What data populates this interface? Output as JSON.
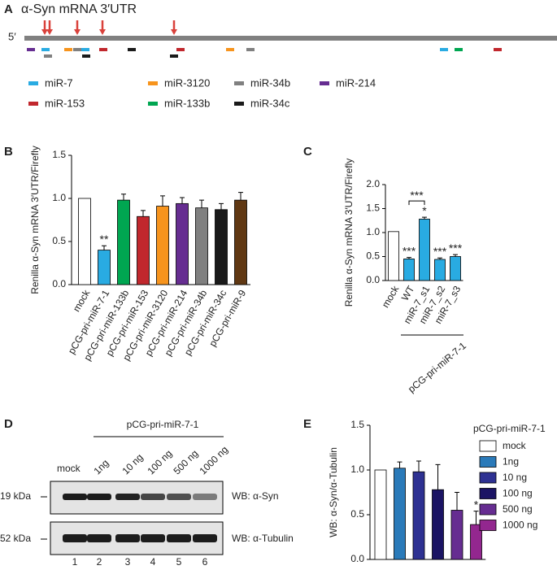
{
  "panel_a": {
    "label": "A",
    "title": "α-Syn mRNA 3′UTR",
    "five_prime": "5′",
    "legend": [
      {
        "name": "miR-7",
        "color": "#29abe2"
      },
      {
        "name": "miR-3120",
        "color": "#f7941d"
      },
      {
        "name": "miR-34b",
        "color": "#808080"
      },
      {
        "name": "miR-214",
        "color": "#662d91"
      },
      {
        "name": "miR-153",
        "color": "#c1272d"
      },
      {
        "name": "miR-133b",
        "color": "#00a651"
      },
      {
        "name": "miR-34c",
        "color": "#1a1a1a"
      }
    ]
  },
  "chart_data": [
    {
      "type": "bar",
      "label": "B",
      "ylabel": "Renilla α-Syn mRNA 3′UTR/Firefly",
      "categories": [
        "mock",
        "pCG-pri-miR-7-1",
        "pCG-pri-miR-133b",
        "pCG-pri-miR-153",
        "pCG-pri-miR-3120",
        "pCG-pri-miR-214",
        "pCG-pri-miR-34b",
        "pCG-pri-miR-34c",
        "pCG-pri-miR-9"
      ],
      "values": [
        1.0,
        0.4,
        0.98,
        0.79,
        0.91,
        0.94,
        0.89,
        0.87,
        0.98
      ],
      "errors": [
        null,
        0.05,
        0.07,
        0.07,
        0.12,
        0.07,
        0.09,
        0.07,
        0.09
      ],
      "annotations": [
        null,
        "**",
        null,
        null,
        null,
        null,
        null,
        null,
        null
      ],
      "colors": [
        "#ffffff",
        "#29abe2",
        "#00a651",
        "#c1272d",
        "#f7941d",
        "#662d91",
        "#808080",
        "#1a1a1a",
        "#603813"
      ],
      "ylim": [
        0,
        1.5
      ],
      "yticks": [
        {
          "value": 0,
          "label": "0.0"
        },
        {
          "value": 0.5,
          "label": "0.5"
        },
        {
          "value": 1,
          "label": "1.0"
        },
        {
          "value": 1.5,
          "label": "1.5"
        }
      ]
    },
    {
      "type": "bar",
      "label": "C",
      "ylabel": "Renilla α-Syn mRNA 3′UTR/Firefly",
      "categories": [
        "mock",
        "WT",
        "miR-7_s1",
        "miR-7_s2",
        "miR-7_s3"
      ],
      "values": [
        1.02,
        0.45,
        1.28,
        0.44,
        0.5
      ],
      "errors": [
        null,
        0.03,
        0.04,
        0.03,
        0.04
      ],
      "annotations": [
        null,
        "***",
        "*",
        "***",
        "***"
      ],
      "colors": [
        "#ffffff",
        "#29abe2",
        "#29abe2",
        "#29abe2",
        "#29abe2"
      ],
      "comparisons": [
        {
          "between": [
            1,
            2
          ],
          "label": "***"
        }
      ],
      "group_label": "pCG-pri-miR-7-1",
      "ylim": [
        0,
        2
      ],
      "yticks": [
        {
          "value": 0,
          "label": "0.0"
        },
        {
          "value": 0.5,
          "label": "0.5"
        },
        {
          "value": 1,
          "label": "1.0"
        },
        {
          "value": 1.5,
          "label": "1.5"
        },
        {
          "value": 2,
          "label": "2.0"
        }
      ]
    },
    {
      "type": "bar",
      "label": "E",
      "ylabel": "WB: α-Syn/α-Tubulin",
      "legend_title": "pCG-pri-miR-7-1",
      "categories": [
        "mock",
        "1ng",
        "10 ng",
        "100 ng",
        "500 ng",
        "1000 ng"
      ],
      "values": [
        1.0,
        1.02,
        0.98,
        0.78,
        0.55,
        0.39
      ],
      "errors": [
        null,
        0.07,
        0.12,
        0.28,
        0.2,
        0.15
      ],
      "annotations": [
        null,
        null,
        null,
        null,
        null,
        "*"
      ],
      "colors": [
        "#ffffff",
        "#2a7ab9",
        "#2e3192",
        "#1b1464",
        "#662d91",
        "#93278f"
      ],
      "ylim": [
        0,
        1.5
      ],
      "yticks": [
        {
          "value": 0,
          "label": "0.0"
        },
        {
          "value": 0.5,
          "label": "0.5"
        },
        {
          "value": 1,
          "label": "1.0"
        },
        {
          "value": 1.5,
          "label": "1.5"
        }
      ]
    }
  ],
  "panel_d": {
    "label": "D",
    "group_label": "pCG-pri-miR-7-1",
    "lanes": [
      "mock",
      "1ng",
      "10 ng",
      "100 ng",
      "500 ng",
      "1000 ng"
    ],
    "lane_numbers": [
      1,
      2,
      3,
      4,
      5,
      6
    ],
    "blots": [
      {
        "size": "19 kDa",
        "antibody": "WB: α-Syn"
      },
      {
        "size": "52 kDa",
        "antibody": "WB: α-Tubulin"
      }
    ]
  }
}
